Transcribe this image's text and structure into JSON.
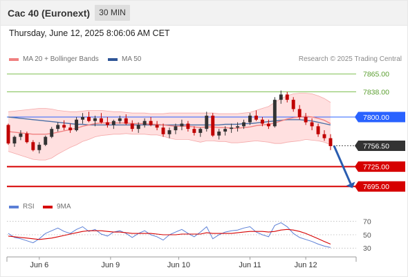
{
  "header": {
    "title": "Cac 40 (Euronext)",
    "timeframe": "30 MIN"
  },
  "datetime": "Thursday, June 12, 2025 8:06:06 AM CET",
  "legend": {
    "ma20_label": "MA 20 + Bollinger Bands",
    "ma50_label": "MA 50",
    "rsi_label": "RSI",
    "rsi_ma_label": "9MA"
  },
  "watermark": "Research © 2025 Trading Central",
  "colors": {
    "candle_up": "#333333",
    "candle_down": "#c00000",
    "bollinger_fill": "#ffd5d5",
    "ma20": "#f08080",
    "ma50": "#4a6fa5",
    "resistance": "#7cbf4e",
    "pivot": "#2962ff",
    "support": "#d60000",
    "last_price": "#333333",
    "rsi": "#5b7fd6",
    "rsi_ma": "#d60000",
    "arrow": "#2a5db0"
  },
  "chart_data": [
    {
      "type": "candlestick",
      "price_axis_ticks": [],
      "levels": [
        {
          "label": "7865.00",
          "value": 7865.0,
          "role": "resistance"
        },
        {
          "label": "7838.00",
          "value": 7838.0,
          "role": "resistance"
        },
        {
          "label": "7800.00",
          "value": 7800.0,
          "role": "pivot"
        },
        {
          "label": "7756.50",
          "value": 7756.5,
          "role": "last"
        },
        {
          "label": "7725.00",
          "value": 7725.0,
          "role": "support"
        },
        {
          "label": "7695.00",
          "value": 7695.0,
          "role": "support"
        }
      ],
      "ylim": [
        7689,
        7868
      ],
      "x_tick_labels": [
        "Jun 6",
        "Jun 9",
        "Jun 10",
        "Jun 11",
        "Jun 12"
      ],
      "x_tick_positions": [
        5,
        16.5,
        27.5,
        39,
        48
      ],
      "candles": [
        [
          7788,
          7790,
          7758,
          7760
        ],
        [
          7760,
          7772,
          7755,
          7770
        ],
        [
          7770,
          7780,
          7765,
          7775
        ],
        [
          7775,
          7778,
          7760,
          7762
        ],
        [
          7762,
          7765,
          7748,
          7750
        ],
        [
          7750,
          7762,
          7745,
          7758
        ],
        [
          7758,
          7772,
          7756,
          7770
        ],
        [
          7770,
          7785,
          7768,
          7782
        ],
        [
          7782,
          7792,
          7778,
          7788
        ],
        [
          7788,
          7795,
          7780,
          7784
        ],
        [
          7784,
          7790,
          7776,
          7780
        ],
        [
          7780,
          7800,
          7778,
          7796
        ],
        [
          7796,
          7806,
          7790,
          7800
        ],
        [
          7800,
          7808,
          7792,
          7794
        ],
        [
          7794,
          7802,
          7786,
          7798
        ],
        [
          7798,
          7806,
          7790,
          7792
        ],
        [
          7792,
          7800,
          7784,
          7788
        ],
        [
          7788,
          7796,
          7782,
          7794
        ],
        [
          7794,
          7802,
          7790,
          7798
        ],
        [
          7798,
          7804,
          7788,
          7790
        ],
        [
          7790,
          7795,
          7778,
          7782
        ],
        [
          7782,
          7792,
          7776,
          7788
        ],
        [
          7788,
          7798,
          7784,
          7794
        ],
        [
          7794,
          7800,
          7786,
          7788
        ],
        [
          7788,
          7794,
          7780,
          7784
        ],
        [
          7784,
          7790,
          7770,
          7774
        ],
        [
          7774,
          7784,
          7768,
          7780
        ],
        [
          7780,
          7790,
          7774,
          7786
        ],
        [
          7786,
          7796,
          7780,
          7790
        ],
        [
          7790,
          7794,
          7778,
          7782
        ],
        [
          7782,
          7786,
          7772,
          7776
        ],
        [
          7776,
          7784,
          7770,
          7782
        ],
        [
          7782,
          7808,
          7778,
          7802
        ],
        [
          7802,
          7806,
          7770,
          7772
        ],
        [
          7772,
          7782,
          7766,
          7778
        ],
        [
          7778,
          7786,
          7772,
          7782
        ],
        [
          7782,
          7790,
          7776,
          7784
        ],
        [
          7784,
          7792,
          7778,
          7786
        ],
        [
          7786,
          7796,
          7782,
          7792
        ],
        [
          7792,
          7806,
          7788,
          7802
        ],
        [
          7802,
          7810,
          7794,
          7796
        ],
        [
          7796,
          7800,
          7786,
          7790
        ],
        [
          7790,
          7796,
          7782,
          7786
        ],
        [
          7786,
          7830,
          7784,
          7826
        ],
        [
          7826,
          7840,
          7820,
          7834
        ],
        [
          7834,
          7838,
          7822,
          7826
        ],
        [
          7826,
          7830,
          7808,
          7812
        ],
        [
          7812,
          7818,
          7796,
          7800
        ],
        [
          7800,
          7806,
          7788,
          7792
        ],
        [
          7792,
          7798,
          7780,
          7786
        ],
        [
          7786,
          7790,
          7770,
          7774
        ],
        [
          7774,
          7780,
          7764,
          7768
        ],
        [
          7768,
          7774,
          7750,
          7756
        ]
      ],
      "ma20": [
        7778,
        7777,
        7776,
        7775,
        7774,
        7774,
        7774,
        7775,
        7777,
        7779,
        7781,
        7783,
        7786,
        7788,
        7790,
        7791,
        7791,
        7791,
        7791,
        7791,
        7790,
        7790,
        7790,
        7789,
        7789,
        7788,
        7787,
        7786,
        7786,
        7786,
        7785,
        7784,
        7785,
        7785,
        7784,
        7784,
        7783,
        7783,
        7784,
        7785,
        7787,
        7788,
        7789,
        7791,
        7794,
        7797,
        7799,
        7800,
        7801,
        7800,
        7798,
        7795,
        7790
      ],
      "ma50": [
        7800,
        7799,
        7798,
        7797,
        7796,
        7795,
        7794,
        7793,
        7792,
        7791,
        7790,
        7789,
        7789,
        7788,
        7788,
        7788,
        7788,
        7788,
        7788,
        7788,
        7788,
        7788,
        7788,
        7788,
        7788,
        7788,
        7788,
        7788,
        7788,
        7788,
        7788,
        7788,
        7788,
        7788,
        7788,
        7789,
        7789,
        7789,
        7790,
        7790,
        7791,
        7792,
        7793,
        7794,
        7795,
        7796,
        7796,
        7796,
        7795,
        7794,
        7792,
        7790,
        7788
      ],
      "bb_upper": [
        7808,
        7809,
        7810,
        7811,
        7812,
        7813,
        7813,
        7812,
        7810,
        7809,
        7808,
        7808,
        7809,
        7810,
        7810,
        7810,
        7809,
        7808,
        7808,
        7807,
        7806,
        7806,
        7806,
        7805,
        7805,
        7805,
        7806,
        7806,
        7806,
        7806,
        7806,
        7806,
        7806,
        7806,
        7805,
        7805,
        7805,
        7805,
        7806,
        7807,
        7810,
        7813,
        7816,
        7822,
        7828,
        7832,
        7835,
        7836,
        7836,
        7835,
        7832,
        7828,
        7822
      ],
      "bb_lower": [
        7748,
        7745,
        7742,
        7739,
        7736,
        7735,
        7735,
        7738,
        7744,
        7749,
        7754,
        7758,
        7763,
        7766,
        7770,
        7772,
        7773,
        7774,
        7774,
        7775,
        7774,
        7774,
        7774,
        7773,
        7773,
        7771,
        7768,
        7766,
        7766,
        7766,
        7764,
        7762,
        7764,
        7764,
        7763,
        7763,
        7761,
        7761,
        7762,
        7763,
        7764,
        7763,
        7762,
        7760,
        7760,
        7762,
        7763,
        7764,
        7766,
        7765,
        7764,
        7762,
        7758
      ],
      "projection": {
        "from": 7756.5,
        "to": 7695.0
      }
    },
    {
      "type": "line",
      "name": "RSI",
      "y_ticks": [
        70,
        50,
        30
      ],
      "ylim": [
        20,
        80
      ],
      "series": [
        {
          "name": "RSI",
          "values": [
            52,
            46,
            44,
            41,
            38,
            44,
            52,
            56,
            60,
            55,
            52,
            58,
            62,
            55,
            58,
            51,
            48,
            54,
            56,
            52,
            46,
            52,
            56,
            50,
            47,
            42,
            50,
            54,
            58,
            52,
            47,
            54,
            62,
            44,
            50,
            54,
            56,
            57,
            60,
            62,
            54,
            50,
            47,
            64,
            68,
            62,
            52,
            46,
            43,
            40,
            36,
            33,
            31
          ]
        },
        {
          "name": "9MA",
          "values": [
            48,
            47,
            46,
            45,
            44,
            43,
            44,
            45,
            47,
            49,
            51,
            53,
            55,
            56,
            56,
            56,
            55,
            54,
            54,
            53,
            52,
            52,
            52,
            52,
            51,
            50,
            50,
            50,
            51,
            51,
            51,
            51,
            53,
            52,
            52,
            52,
            52,
            53,
            54,
            55,
            55,
            55,
            54,
            55,
            57,
            58,
            57,
            55,
            52,
            48,
            44,
            40,
            36
          ]
        }
      ]
    }
  ]
}
